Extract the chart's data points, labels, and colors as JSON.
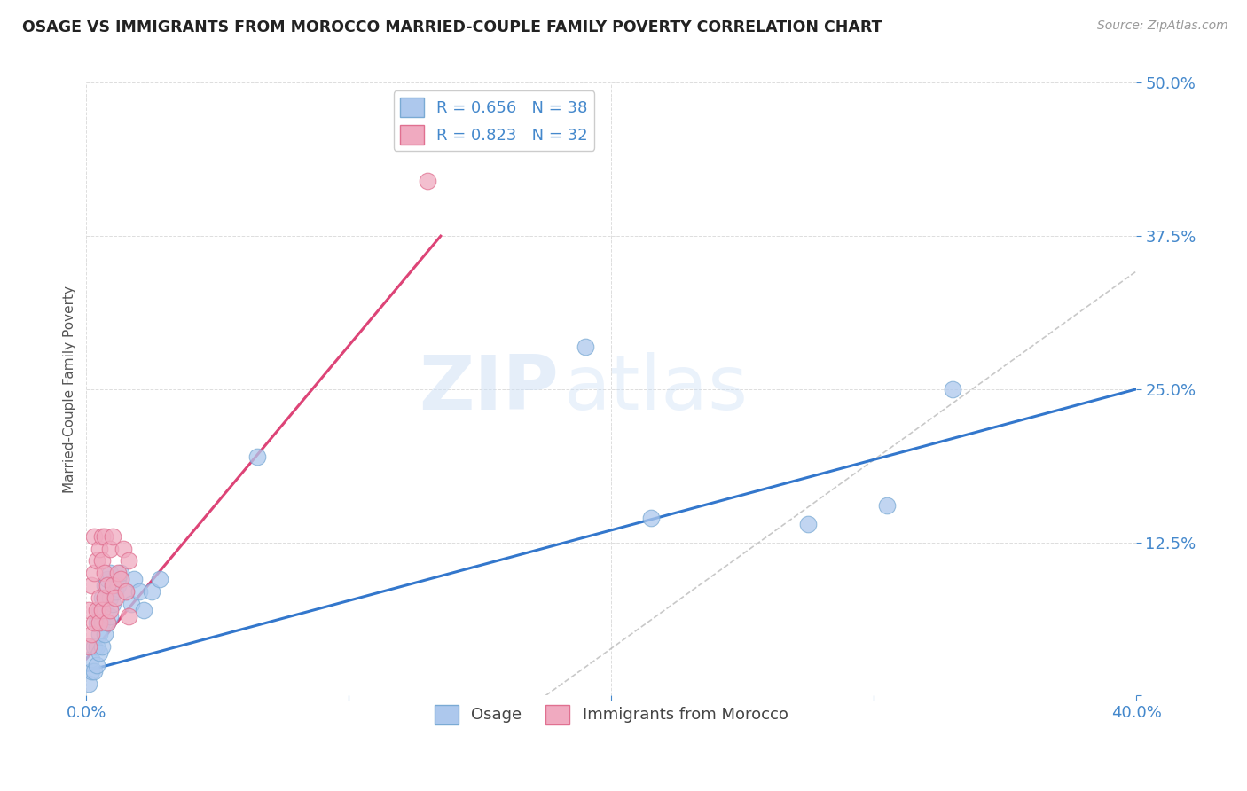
{
  "title": "OSAGE VS IMMIGRANTS FROM MOROCCO MARRIED-COUPLE FAMILY POVERTY CORRELATION CHART",
  "source": "Source: ZipAtlas.com",
  "xlabel": "",
  "ylabel": "Married-Couple Family Poverty",
  "xlim": [
    0.0,
    0.4
  ],
  "ylim": [
    0.0,
    0.5
  ],
  "xticks": [
    0.0,
    0.1,
    0.2,
    0.3,
    0.4
  ],
  "yticks": [
    0.0,
    0.125,
    0.25,
    0.375,
    0.5
  ],
  "xticklabels": [
    "0.0%",
    "",
    "",
    "",
    "40.0%"
  ],
  "yticklabels": [
    "",
    "12.5%",
    "25.0%",
    "37.5%",
    "50.0%"
  ],
  "legend_R1": "0.656",
  "legend_N1": "38",
  "legend_R2": "0.823",
  "legend_N2": "32",
  "osage_color": "#adc8ed",
  "morocco_color": "#f0aac0",
  "osage_edge": "#7aaad4",
  "morocco_edge": "#e07090",
  "line_osage_color": "#3377cc",
  "line_morocco_color": "#dd4477",
  "ref_line_color": "#bbbbbb",
  "watermark_zip": "ZIP",
  "watermark_atlas": "atlas",
  "background_color": "#ffffff",
  "grid_color": "#dddddd",
  "osage_x": [
    0.001,
    0.002,
    0.002,
    0.003,
    0.003,
    0.004,
    0.004,
    0.004,
    0.005,
    0.005,
    0.005,
    0.006,
    0.006,
    0.006,
    0.007,
    0.007,
    0.008,
    0.008,
    0.009,
    0.009,
    0.009,
    0.01,
    0.011,
    0.012,
    0.013,
    0.015,
    0.017,
    0.018,
    0.02,
    0.022,
    0.025,
    0.028,
    0.065,
    0.19,
    0.215,
    0.275,
    0.305,
    0.33
  ],
  "osage_y": [
    0.01,
    0.02,
    0.03,
    0.02,
    0.04,
    0.025,
    0.04,
    0.06,
    0.035,
    0.05,
    0.07,
    0.04,
    0.06,
    0.08,
    0.05,
    0.09,
    0.06,
    0.095,
    0.065,
    0.08,
    0.1,
    0.075,
    0.085,
    0.09,
    0.1,
    0.085,
    0.075,
    0.095,
    0.085,
    0.07,
    0.085,
    0.095,
    0.195,
    0.285,
    0.145,
    0.14,
    0.155,
    0.25
  ],
  "morocco_x": [
    0.001,
    0.001,
    0.002,
    0.002,
    0.003,
    0.003,
    0.003,
    0.004,
    0.004,
    0.005,
    0.005,
    0.005,
    0.006,
    0.006,
    0.006,
    0.007,
    0.007,
    0.007,
    0.008,
    0.008,
    0.009,
    0.009,
    0.01,
    0.01,
    0.011,
    0.012,
    0.013,
    0.014,
    0.015,
    0.016,
    0.13,
    0.016
  ],
  "morocco_y": [
    0.04,
    0.07,
    0.05,
    0.09,
    0.06,
    0.1,
    0.13,
    0.07,
    0.11,
    0.08,
    0.12,
    0.06,
    0.07,
    0.11,
    0.13,
    0.08,
    0.1,
    0.13,
    0.06,
    0.09,
    0.07,
    0.12,
    0.09,
    0.13,
    0.08,
    0.1,
    0.095,
    0.12,
    0.085,
    0.11,
    0.42,
    0.065
  ],
  "osage_line_x": [
    0.0,
    0.4
  ],
  "osage_line_y": [
    0.02,
    0.25
  ],
  "morocco_line_x": [
    0.0,
    0.135
  ],
  "morocco_line_y": [
    0.03,
    0.375
  ],
  "ref_line_x": [
    0.175,
    0.5
  ],
  "ref_line_y": [
    0.0,
    0.5
  ]
}
